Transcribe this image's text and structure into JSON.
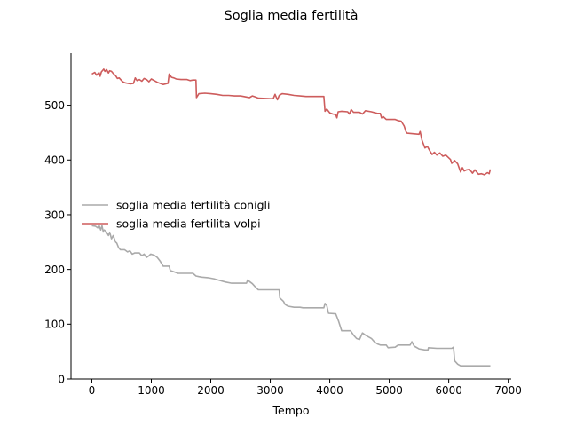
{
  "chart_data": {
    "type": "line",
    "title": "Soglia media fertilità",
    "xlabel": "Tempo",
    "ylabel": "",
    "xlim": [
      -350,
      7050
    ],
    "ylim": [
      0,
      595
    ],
    "xticks": [
      0,
      1000,
      2000,
      3000,
      4000,
      5000,
      6000,
      7000
    ],
    "yticks": [
      0,
      100,
      200,
      300,
      400,
      500
    ],
    "grid": false,
    "legend": "center-left",
    "series": [
      {
        "name": "soglia media fertilità conigli",
        "color": "#aaaaaa",
        "points": [
          [
            0,
            280
          ],
          [
            60,
            279
          ],
          [
            100,
            276
          ],
          [
            120,
            281
          ],
          [
            150,
            272
          ],
          [
            170,
            280
          ],
          [
            190,
            270
          ],
          [
            210,
            272
          ],
          [
            250,
            268
          ],
          [
            280,
            262
          ],
          [
            300,
            268
          ],
          [
            330,
            256
          ],
          [
            360,
            262
          ],
          [
            380,
            256
          ],
          [
            400,
            250
          ],
          [
            420,
            248
          ],
          [
            450,
            240
          ],
          [
            480,
            236
          ],
          [
            550,
            236
          ],
          [
            600,
            232
          ],
          [
            640,
            234
          ],
          [
            680,
            228
          ],
          [
            720,
            230
          ],
          [
            800,
            230
          ],
          [
            840,
            225
          ],
          [
            880,
            228
          ],
          [
            920,
            222
          ],
          [
            950,
            224
          ],
          [
            990,
            228
          ],
          [
            1050,
            226
          ],
          [
            1100,
            222
          ],
          [
            1150,
            215
          ],
          [
            1200,
            206
          ],
          [
            1300,
            206
          ],
          [
            1320,
            198
          ],
          [
            1400,
            195
          ],
          [
            1450,
            193
          ],
          [
            1700,
            193
          ],
          [
            1750,
            188
          ],
          [
            1800,
            187
          ],
          [
            1850,
            186
          ],
          [
            1950,
            185
          ],
          [
            2050,
            183
          ],
          [
            2150,
            180
          ],
          [
            2250,
            177
          ],
          [
            2350,
            175
          ],
          [
            2600,
            175
          ],
          [
            2620,
            181
          ],
          [
            2650,
            178
          ],
          [
            2700,
            174
          ],
          [
            2750,
            168
          ],
          [
            2800,
            163
          ],
          [
            3150,
            163
          ],
          [
            3160,
            148
          ],
          [
            3220,
            142
          ],
          [
            3250,
            136
          ],
          [
            3300,
            133
          ],
          [
            3400,
            131
          ],
          [
            3500,
            131
          ],
          [
            3550,
            130
          ],
          [
            3900,
            130
          ],
          [
            3920,
            138
          ],
          [
            3950,
            134
          ],
          [
            3980,
            120
          ],
          [
            4100,
            119
          ],
          [
            4150,
            105
          ],
          [
            4200,
            88
          ],
          [
            4350,
            88
          ],
          [
            4400,
            80
          ],
          [
            4450,
            74
          ],
          [
            4500,
            72
          ],
          [
            4550,
            84
          ],
          [
            4600,
            80
          ],
          [
            4700,
            74
          ],
          [
            4750,
            68
          ],
          [
            4800,
            64
          ],
          [
            4850,
            62
          ],
          [
            4950,
            62
          ],
          [
            4980,
            57
          ],
          [
            5100,
            58
          ],
          [
            5150,
            62
          ],
          [
            5350,
            62
          ],
          [
            5380,
            68
          ],
          [
            5420,
            60
          ],
          [
            5500,
            55
          ],
          [
            5600,
            53
          ],
          [
            5650,
            53
          ],
          [
            5660,
            57
          ],
          [
            5800,
            56
          ],
          [
            6050,
            56
          ],
          [
            6080,
            58
          ],
          [
            6100,
            33
          ],
          [
            6150,
            27
          ],
          [
            6200,
            24
          ],
          [
            6700,
            24
          ]
        ]
      },
      {
        "name": "soglia media fertilita volpi",
        "color": "#cd5c5c",
        "points": [
          [
            0,
            557
          ],
          [
            50,
            560
          ],
          [
            80,
            555
          ],
          [
            120,
            560
          ],
          [
            140,
            553
          ],
          [
            160,
            561
          ],
          [
            200,
            566
          ],
          [
            220,
            562
          ],
          [
            250,
            565
          ],
          [
            280,
            559
          ],
          [
            300,
            563
          ],
          [
            330,
            562
          ],
          [
            360,
            558
          ],
          [
            400,
            554
          ],
          [
            430,
            549
          ],
          [
            460,
            550
          ],
          [
            500,
            545
          ],
          [
            520,
            543
          ],
          [
            560,
            541
          ],
          [
            600,
            540
          ],
          [
            650,
            539
          ],
          [
            700,
            540
          ],
          [
            730,
            550
          ],
          [
            760,
            545
          ],
          [
            800,
            547
          ],
          [
            840,
            544
          ],
          [
            880,
            549
          ],
          [
            920,
            547
          ],
          [
            960,
            543
          ],
          [
            1000,
            548
          ],
          [
            1050,
            545
          ],
          [
            1100,
            542
          ],
          [
            1200,
            538
          ],
          [
            1280,
            540
          ],
          [
            1300,
            557
          ],
          [
            1340,
            551
          ],
          [
            1380,
            550
          ],
          [
            1420,
            548
          ],
          [
            1500,
            547
          ],
          [
            1600,
            547
          ],
          [
            1650,
            545
          ],
          [
            1700,
            546
          ],
          [
            1750,
            546
          ],
          [
            1760,
            514
          ],
          [
            1800,
            521
          ],
          [
            1900,
            522
          ],
          [
            2000,
            521
          ],
          [
            2100,
            520
          ],
          [
            2200,
            518
          ],
          [
            2300,
            518
          ],
          [
            2400,
            517
          ],
          [
            2500,
            517
          ],
          [
            2550,
            516
          ],
          [
            2600,
            515
          ],
          [
            2650,
            514
          ],
          [
            2700,
            517
          ],
          [
            2750,
            515
          ],
          [
            2800,
            513
          ],
          [
            3000,
            512
          ],
          [
            3050,
            512
          ],
          [
            3080,
            520
          ],
          [
            3120,
            510
          ],
          [
            3150,
            518
          ],
          [
            3200,
            521
          ],
          [
            3300,
            520
          ],
          [
            3400,
            518
          ],
          [
            3500,
            517
          ],
          [
            3600,
            516
          ],
          [
            3900,
            516
          ],
          [
            3920,
            489
          ],
          [
            3950,
            493
          ],
          [
            4000,
            486
          ],
          [
            4050,
            484
          ],
          [
            4100,
            483
          ],
          [
            4120,
            477
          ],
          [
            4140,
            488
          ],
          [
            4200,
            489
          ],
          [
            4300,
            488
          ],
          [
            4330,
            484
          ],
          [
            4360,
            492
          ],
          [
            4400,
            487
          ],
          [
            4500,
            487
          ],
          [
            4550,
            484
          ],
          [
            4600,
            490
          ],
          [
            4700,
            488
          ],
          [
            4800,
            485
          ],
          [
            4850,
            485
          ],
          [
            4870,
            477
          ],
          [
            4900,
            479
          ],
          [
            4950,
            474
          ],
          [
            5100,
            474
          ],
          [
            5150,
            472
          ],
          [
            5200,
            471
          ],
          [
            5250,
            462
          ],
          [
            5280,
            452
          ],
          [
            5300,
            449
          ],
          [
            5400,
            448
          ],
          [
            5500,
            447
          ],
          [
            5520,
            452
          ],
          [
            5550,
            436
          ],
          [
            5600,
            422
          ],
          [
            5640,
            425
          ],
          [
            5680,
            417
          ],
          [
            5720,
            410
          ],
          [
            5760,
            414
          ],
          [
            5800,
            409
          ],
          [
            5850,
            413
          ],
          [
            5900,
            407
          ],
          [
            5950,
            409
          ],
          [
            6000,
            404
          ],
          [
            6030,
            401
          ],
          [
            6050,
            394
          ],
          [
            6100,
            399
          ],
          [
            6150,
            393
          ],
          [
            6200,
            378
          ],
          [
            6230,
            386
          ],
          [
            6260,
            380
          ],
          [
            6300,
            382
          ],
          [
            6350,
            383
          ],
          [
            6400,
            376
          ],
          [
            6440,
            382
          ],
          [
            6500,
            374
          ],
          [
            6550,
            375
          ],
          [
            6600,
            373
          ],
          [
            6650,
            377
          ],
          [
            6680,
            375
          ],
          [
            6700,
            383
          ]
        ]
      }
    ]
  }
}
